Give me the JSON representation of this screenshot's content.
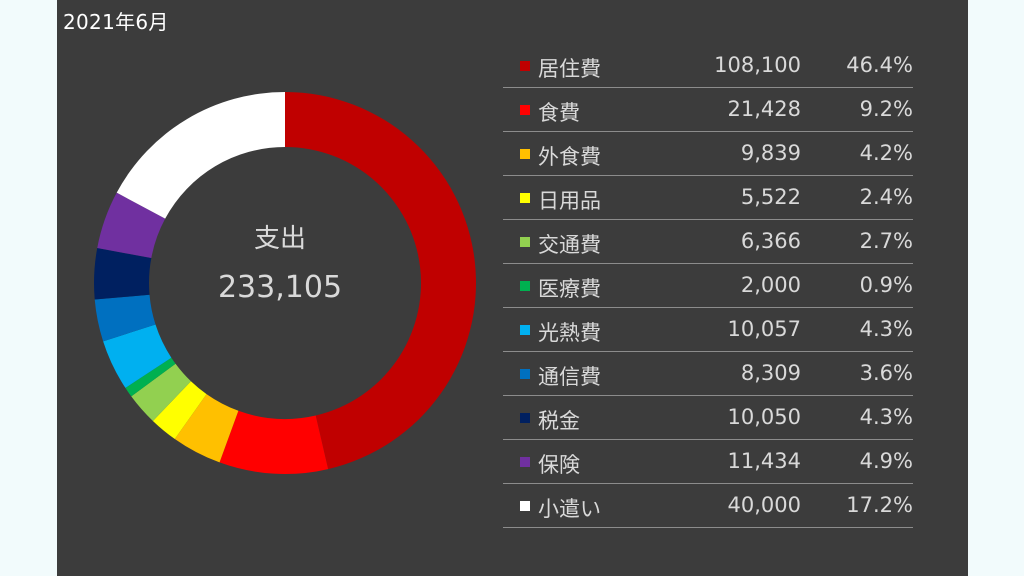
{
  "header": {
    "title": "2021年6月"
  },
  "center": {
    "label": "支出",
    "total": "233,105"
  },
  "chart_data": {
    "type": "pie",
    "title": "2021年6月",
    "total_label": "支出",
    "total": 233105,
    "legend_position": "right",
    "slices": [
      {
        "name": "居住費",
        "value": 108100,
        "amount": "108,100",
        "percent": "46.4%",
        "color": "#c00000"
      },
      {
        "name": "食費",
        "value": 21428,
        "amount": "21,428",
        "percent": "9.2%",
        "color": "#ff0000"
      },
      {
        "name": "外食費",
        "value": 9839,
        "amount": "9,839",
        "percent": "4.2%",
        "color": "#ffc000"
      },
      {
        "name": "日用品",
        "value": 5522,
        "amount": "5,522",
        "percent": "2.4%",
        "color": "#ffff00"
      },
      {
        "name": "交通費",
        "value": 6366,
        "amount": "6,366",
        "percent": "2.7%",
        "color": "#92d050"
      },
      {
        "name": "医療費",
        "value": 2000,
        "amount": "2,000",
        "percent": "0.9%",
        "color": "#00b050"
      },
      {
        "name": "光熱費",
        "value": 10057,
        "amount": "10,057",
        "percent": "4.3%",
        "color": "#00b0f0"
      },
      {
        "name": "通信費",
        "value": 8309,
        "amount": "8,309",
        "percent": "3.6%",
        "color": "#0070c0"
      },
      {
        "name": "税金",
        "value": 10050,
        "amount": "10,050",
        "percent": "4.3%",
        "color": "#002060"
      },
      {
        "name": "保険",
        "value": 11434,
        "amount": "11,434",
        "percent": "4.9%",
        "color": "#7030a0"
      },
      {
        "name": "小遣い",
        "value": 40000,
        "amount": "40,000",
        "percent": "17.2%",
        "color": "#ffffff"
      }
    ]
  }
}
